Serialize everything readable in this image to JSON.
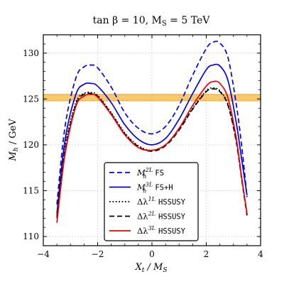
{
  "chart_data": {
    "type": "line",
    "title": "tan β = 10, M",
    "title_sub": "S",
    "title_tail": " = 5 TeV",
    "xlabel_main": "X",
    "xlabel_sub": "t",
    "xlabel_sep": " / M",
    "xlabel_sub2": "S",
    "ylabel_main": "M",
    "ylabel_sub": "h",
    "ylabel_tail": " / GeV",
    "xlim": [
      -4,
      4
    ],
    "ylim": [
      109,
      132
    ],
    "xticks": [
      -4,
      -2,
      0,
      2,
      4
    ],
    "xtick_labels": [
      "−4",
      "−2",
      "0",
      "2",
      "4"
    ],
    "yticks": [
      110,
      115,
      120,
      125,
      130
    ],
    "ytick_labels": [
      "110",
      "115",
      "120",
      "125",
      "130"
    ],
    "grid": true,
    "band": {
      "ymin": 124.8,
      "ymax": 125.5,
      "color": "#f6b73c"
    },
    "legend_position": "lower-center",
    "series": [
      {
        "key": "fs2l",
        "name_main": "M",
        "name_sup": "2L",
        "name_sub": "h",
        "name_code": "FS",
        "color": "#0000ee",
        "dash": "dashed",
        "x": [
          -3.5,
          -3.2,
          -2.8,
          -2.5,
          -2.25,
          -2.0,
          -1.5,
          -1.0,
          -0.5,
          0.0,
          0.5,
          1.0,
          1.5,
          2.0,
          2.25,
          2.5,
          2.8,
          3.1,
          3.3,
          3.5
        ],
        "y": [
          113.5,
          122.0,
          127.3,
          128.5,
          128.7,
          128.4,
          126.3,
          123.5,
          121.8,
          121.2,
          122.0,
          124.3,
          127.6,
          130.5,
          131.2,
          131.1,
          129.5,
          124.5,
          120.0,
          114.3
        ]
      },
      {
        "key": "fsh3l",
        "name_main": "M",
        "name_sup": "3L",
        "name_sub": "h",
        "name_code": "FS+H",
        "color": "#0000ee",
        "dash": "solid",
        "x": [
          -3.5,
          -3.2,
          -2.8,
          -2.5,
          -2.25,
          -2.0,
          -1.5,
          -1.0,
          -0.5,
          0.0,
          0.5,
          1.0,
          1.5,
          2.0,
          2.25,
          2.5,
          2.8,
          3.1,
          3.3,
          3.5
        ],
        "y": [
          112.5,
          120.5,
          125.5,
          126.6,
          126.7,
          126.4,
          124.6,
          122.2,
          120.6,
          120.0,
          120.7,
          122.8,
          125.6,
          128.2,
          128.7,
          128.6,
          127.0,
          122.5,
          118.5,
          114.5
        ]
      },
      {
        "key": "hss1l",
        "name_main": "Δλ",
        "name_sup": "1L",
        "name_sub": "",
        "name_code": "HSSUSY",
        "color": "#000000",
        "dash": "dotted",
        "x": [
          -3.5,
          -3.2,
          -2.8,
          -2.5,
          -2.25,
          -2.0,
          -1.5,
          -1.0,
          -0.5,
          0.0,
          0.5,
          1.0,
          1.5,
          2.0,
          2.25,
          2.5,
          2.8,
          3.1,
          3.3,
          3.5
        ],
        "y": [
          112.3,
          119.8,
          124.6,
          125.6,
          125.7,
          125.4,
          123.5,
          121.3,
          119.9,
          119.4,
          120.0,
          121.7,
          124.0,
          125.9,
          126.2,
          125.9,
          124.4,
          120.5,
          116.5,
          112.5
        ]
      },
      {
        "key": "hss2l",
        "name_main": "Δλ",
        "name_sup": "2L",
        "name_sub": "",
        "name_code": "HSSUSY",
        "color": "#000000",
        "dash": "dashed",
        "x": [
          -3.5,
          -3.2,
          -2.8,
          -2.5,
          -2.25,
          -2.0,
          -1.5,
          -1.0,
          -0.5,
          0.0,
          0.5,
          1.0,
          1.5,
          2.0,
          2.25,
          2.5,
          2.8,
          3.1,
          3.3,
          3.5
        ],
        "y": [
          112.0,
          119.4,
          124.4,
          125.5,
          125.6,
          125.3,
          123.4,
          121.2,
          119.8,
          119.3,
          119.9,
          121.6,
          123.9,
          125.8,
          126.1,
          125.8,
          124.3,
          120.4,
          116.3,
          112.3
        ]
      },
      {
        "key": "hss3l",
        "name_main": "Δλ",
        "name_sup": "3L",
        "name_sub": "",
        "name_code": "HSSUSY",
        "color": "#ee0000",
        "dash": "solid",
        "x": [
          -3.5,
          -3.2,
          -2.8,
          -2.5,
          -2.25,
          -2.0,
          -1.5,
          -1.0,
          -0.5,
          0.0,
          0.5,
          1.0,
          1.5,
          2.0,
          2.25,
          2.5,
          2.8,
          3.1,
          3.3,
          3.5
        ],
        "y": [
          111.5,
          119.0,
          124.2,
          125.3,
          125.5,
          125.2,
          123.3,
          121.1,
          119.7,
          119.4,
          120.0,
          121.8,
          124.3,
          126.4,
          126.9,
          126.7,
          125.1,
          120.8,
          116.5,
          112.5
        ]
      }
    ]
  }
}
